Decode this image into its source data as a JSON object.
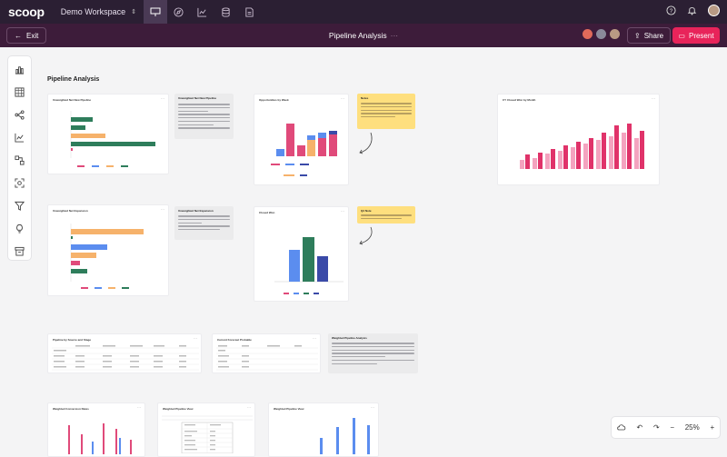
{
  "app": {
    "logo": "scoop",
    "workspace": "Demo Workspace"
  },
  "header": {
    "exit_label": "Exit",
    "title": "Pipeline Analysis",
    "title_menu": "···",
    "share_label": "Share",
    "present_label": "Present"
  },
  "canvas": {
    "title": "Pipeline Analysis"
  },
  "zoom": {
    "level": "25%"
  },
  "cards": {
    "c1": "Unweighted Net New Pipeline",
    "c2": "Opportunities by Week",
    "c3": "CY Closed Won by Month",
    "c4": "Unweighted Net Expansion",
    "c5": "Closed Won",
    "c6": "Pipeline by Source and Stage",
    "c7": "Current Forecast Probable",
    "c8": "Weighted Conversion Rates",
    "c9": "Weighted Pipeline View",
    "c10": "Weighted Pipeline View"
  },
  "text_cards": {
    "t1": "Unweighted Net New Pipeline",
    "t2": "Unweighted Net Expansion",
    "t3": "Weighted Pipeline Analysis"
  },
  "notes": {
    "n1": "Notes",
    "n2": "Q4 Note"
  },
  "colors": {
    "pink": "#e04a7a",
    "green": "#2e7d5b",
    "orange": "#f6b26b",
    "blue": "#5b8def",
    "navy": "#3a4aa8",
    "accent": "#e8245a"
  }
}
